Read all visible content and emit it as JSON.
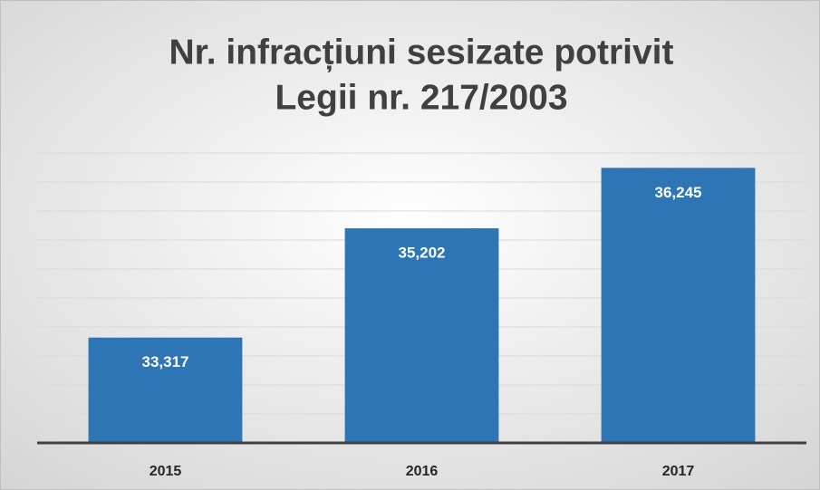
{
  "chart_data": {
    "type": "bar",
    "title": [
      "Nr. infracțiuni sesizate potrivit",
      "Legii nr. 217/2003"
    ],
    "categories": [
      "2015",
      "2016",
      "2017"
    ],
    "values": [
      33317,
      35202,
      36245
    ],
    "value_labels": [
      "33,317",
      "35,202",
      "36,245"
    ],
    "color": "#2e75b6",
    "ylim": [
      31500,
      36500
    ],
    "yticks": [
      31500,
      32000,
      32500,
      33000,
      33500,
      34000,
      34500,
      35000,
      35500,
      36000,
      36500
    ],
    "grid": true
  }
}
